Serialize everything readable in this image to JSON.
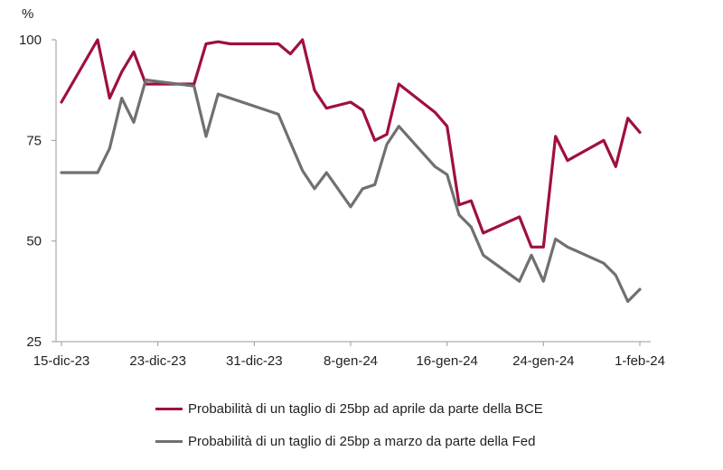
{
  "chart_data": {
    "type": "line",
    "unit": "%",
    "ylim": [
      25,
      100
    ],
    "y_ticks": [
      25,
      50,
      75,
      100
    ],
    "x_tick_labels": [
      "15-dic-23",
      "23-dic-23",
      "31-dic-23",
      "8-gen-24",
      "16-gen-24",
      "24-gen-24",
      "1-feb-24"
    ],
    "x_tick_dates": [
      "2023-12-15",
      "2023-12-23",
      "2023-12-31",
      "2024-01-08",
      "2024-01-16",
      "2024-01-24",
      "2024-02-01"
    ],
    "grid": false,
    "legend_position": "bottom",
    "series": [
      {
        "name": "Probabilità di un taglio di 25bp ad aprile da parte della BCE",
        "color": "#a0103c",
        "points": [
          [
            "2023-12-15",
            84.5
          ],
          [
            "2023-12-18",
            100
          ],
          [
            "2023-12-19",
            85.5
          ],
          [
            "2023-12-20",
            92
          ],
          [
            "2023-12-21",
            97
          ],
          [
            "2023-12-22",
            89
          ],
          [
            "2023-12-26",
            89
          ],
          [
            "2023-12-27",
            99
          ],
          [
            "2023-12-28",
            99.5
          ],
          [
            "2023-12-29",
            99
          ],
          [
            "2024-01-02",
            99
          ],
          [
            "2024-01-03",
            96.5
          ],
          [
            "2024-01-04",
            100
          ],
          [
            "2024-01-05",
            87.5
          ],
          [
            "2024-01-06",
            83
          ],
          [
            "2024-01-08",
            84.5
          ],
          [
            "2024-01-09",
            82.5
          ],
          [
            "2024-01-10",
            75
          ],
          [
            "2024-01-11",
            76.5
          ],
          [
            "2024-01-12",
            89
          ],
          [
            "2024-01-15",
            82
          ],
          [
            "2024-01-16",
            78.5
          ],
          [
            "2024-01-17",
            59
          ],
          [
            "2024-01-18",
            60
          ],
          [
            "2024-01-19",
            52
          ],
          [
            "2024-01-22",
            56
          ],
          [
            "2024-01-23",
            48.5
          ],
          [
            "2024-01-24",
            48.5
          ],
          [
            "2024-01-25",
            76
          ],
          [
            "2024-01-26",
            70
          ],
          [
            "2024-01-29",
            75
          ],
          [
            "2024-01-30",
            68.5
          ],
          [
            "2024-01-31",
            80.5
          ],
          [
            "2024-02-01",
            77
          ]
        ]
      },
      {
        "name": "Probabilità di un taglio di 25bp a marzo da parte della Fed",
        "color": "#707070",
        "points": [
          [
            "2023-12-15",
            67
          ],
          [
            "2023-12-18",
            67
          ],
          [
            "2023-12-19",
            73
          ],
          [
            "2023-12-20",
            85.5
          ],
          [
            "2023-12-21",
            79.5
          ],
          [
            "2023-12-22",
            90
          ],
          [
            "2023-12-26",
            88.5
          ],
          [
            "2023-12-27",
            76
          ],
          [
            "2023-12-28",
            86.5
          ],
          [
            "2024-01-02",
            81.5
          ],
          [
            "2024-01-03",
            74.5
          ],
          [
            "2024-01-04",
            67.5
          ],
          [
            "2024-01-05",
            63
          ],
          [
            "2024-01-06",
            67
          ],
          [
            "2024-01-08",
            58.5
          ],
          [
            "2024-01-09",
            63
          ],
          [
            "2024-01-10",
            64
          ],
          [
            "2024-01-11",
            74
          ],
          [
            "2024-01-12",
            78.5
          ],
          [
            "2024-01-15",
            68.5
          ],
          [
            "2024-01-16",
            66.5
          ],
          [
            "2024-01-17",
            56.5
          ],
          [
            "2024-01-18",
            53.5
          ],
          [
            "2024-01-19",
            46.5
          ],
          [
            "2024-01-22",
            40
          ],
          [
            "2024-01-23",
            46.5
          ],
          [
            "2024-01-24",
            40
          ],
          [
            "2024-01-25",
            50.5
          ],
          [
            "2024-01-26",
            48.5
          ],
          [
            "2024-01-29",
            44.5
          ],
          [
            "2024-01-30",
            41.5
          ],
          [
            "2024-01-31",
            35
          ],
          [
            "2024-02-01",
            38
          ]
        ]
      }
    ]
  }
}
